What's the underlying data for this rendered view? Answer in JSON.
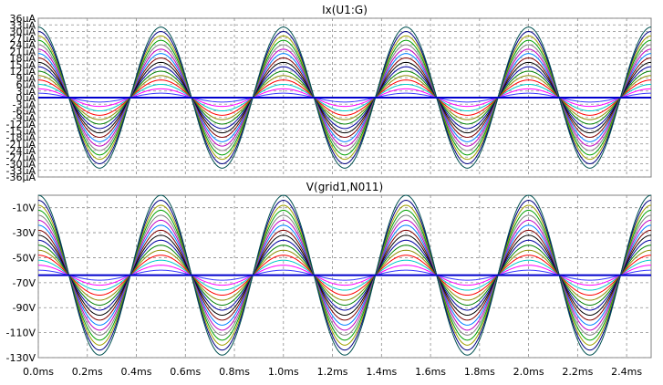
{
  "chart_data": [
    {
      "type": "line",
      "title": "Ix(U1:G)",
      "unit": "µA",
      "x_unit": "ms",
      "xlim": [
        0,
        2.5
      ],
      "ylim": [
        -36,
        36
      ],
      "grid": true,
      "yticks": [
        "36µA",
        "33µA",
        "30µA",
        "27µA",
        "24µA",
        "21µA",
        "18µA",
        "15µA",
        "12µA",
        "9µA",
        "6µA",
        "3µA",
        "0µA",
        "-3µA",
        "-6µA",
        "-9µA",
        "-12µA",
        "-15µA",
        "-18µA",
        "-21µA",
        "-24µA",
        "-27µA",
        "-30µA",
        "-33µA",
        "-36µA"
      ],
      "ytick_values": [
        36,
        33,
        30,
        27,
        24,
        21,
        18,
        15,
        12,
        9,
        6,
        3,
        0,
        -3,
        -6,
        -9,
        -12,
        -15,
        -18,
        -21,
        -24,
        -27,
        -30,
        -33,
        -36
      ],
      "signal": {
        "shape": "sine",
        "frequency_hz": 2000,
        "peak_positive_at_ms": [
          0.0,
          0.5,
          1.0
        ],
        "amplitudes": [
          2,
          4,
          6,
          8,
          10,
          12,
          14,
          16,
          18,
          20,
          22,
          24,
          26,
          28,
          30,
          32
        ],
        "baseline": 0,
        "note": "waveform repeats every 1 ms"
      }
    },
    {
      "type": "line",
      "title": "V(grid1,N011)",
      "unit": "V",
      "x_unit": "ms",
      "xlim": [
        0,
        2.5
      ],
      "ylim": [
        -130,
        0
      ],
      "grid": true,
      "yticks": [
        "-10V",
        "-30V",
        "-50V",
        "-70V",
        "-90V",
        "-110V",
        "-130V"
      ],
      "ytick_values": [
        -10,
        -30,
        -50,
        -70,
        -90,
        -110,
        -130
      ],
      "signal": {
        "shape": "sine",
        "frequency_hz": 2000,
        "baseline": -64,
        "amplitudes": [
          4,
          8,
          12,
          16,
          20,
          24,
          28,
          32,
          36,
          40,
          44,
          48,
          52,
          56,
          60,
          64
        ]
      }
    }
  ],
  "x_axis": {
    "ticks": [
      "0.0ms",
      "0.2ms",
      "0.4ms",
      "0.6ms",
      "0.8ms",
      "1.0ms",
      "1.2ms",
      "1.4ms",
      "1.6ms",
      "1.8ms",
      "2.0ms",
      "2.2ms",
      "2.4ms"
    ],
    "tick_values": [
      0.0,
      0.2,
      0.4,
      0.6,
      0.8,
      1.0,
      1.2,
      1.4,
      1.6,
      1.8,
      2.0,
      2.2,
      2.4
    ]
  },
  "colors": {
    "traces": [
      "#3a3aff",
      "#ff00ff",
      "#00c8c8",
      "#ff0000",
      "#8c8c00",
      "#008000",
      "#0000a0",
      "#000000",
      "#800000",
      "#0080ff",
      "#c000c0",
      "#808080",
      "#00a000",
      "#a0a000",
      "#000080",
      "#005050"
    ],
    "baseline": "#0000cc",
    "grid": "#8c8c8c",
    "frame": "#808080"
  }
}
